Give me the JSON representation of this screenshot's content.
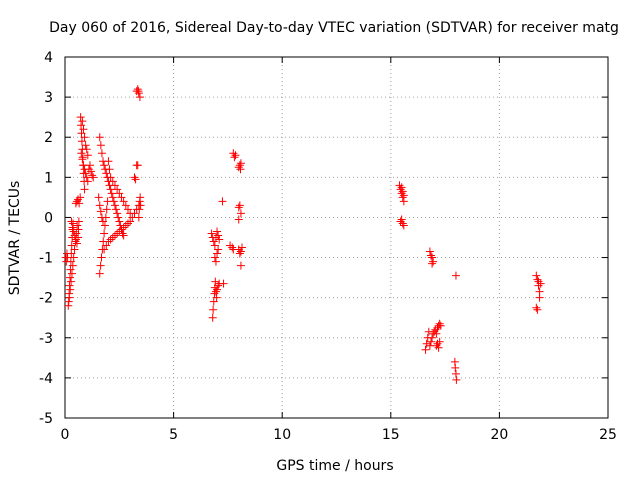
{
  "chart_data": {
    "type": "scatter",
    "title": "Day 060 of 2016, Sidereal Day-to-day VTEC variation (SDTVAR) for receiver matg",
    "xlabel": "GPS time / hours",
    "ylabel": "SDTVAR / TECUs",
    "xlim": [
      0,
      25
    ],
    "ylim": [
      -5,
      4
    ],
    "xticks": [
      0,
      5,
      10,
      15,
      20,
      25
    ],
    "yticks": [
      -5,
      -4,
      -3,
      -2,
      -1,
      0,
      1,
      2,
      3,
      4
    ],
    "grid": true,
    "marker": "+",
    "series": [
      {
        "name": "SDTVAR",
        "color": "#ff0000",
        "points": [
          [
            0.03,
            -1.0
          ],
          [
            0.06,
            -1.1
          ],
          [
            0.09,
            -0.9
          ],
          [
            0.12,
            -1.0
          ],
          [
            0.15,
            -2.2
          ],
          [
            0.17,
            -2.1
          ],
          [
            0.19,
            -1.9
          ],
          [
            0.21,
            -1.7
          ],
          [
            0.23,
            -1.5
          ],
          [
            0.25,
            -1.3
          ],
          [
            0.27,
            -1.1
          ],
          [
            0.29,
            -0.9
          ],
          [
            0.31,
            -0.7
          ],
          [
            0.33,
            -0.5
          ],
          [
            0.35,
            -0.3
          ],
          [
            0.37,
            -0.15
          ],
          [
            0.2,
            -2.0
          ],
          [
            0.24,
            -1.8
          ],
          [
            0.28,
            -1.6
          ],
          [
            0.32,
            -1.4
          ],
          [
            0.36,
            -1.2
          ],
          [
            0.4,
            -1.0
          ],
          [
            0.44,
            -0.8
          ],
          [
            0.48,
            -0.6
          ],
          [
            0.52,
            -0.4
          ],
          [
            0.56,
            -0.2
          ],
          [
            0.3,
            -0.1
          ],
          [
            0.35,
            -0.25
          ],
          [
            0.4,
            -0.35
          ],
          [
            0.45,
            -0.45
          ],
          [
            0.5,
            -0.55
          ],
          [
            0.55,
            -0.65
          ],
          [
            0.6,
            -0.5
          ],
          [
            0.62,
            -0.3
          ],
          [
            0.64,
            -0.1
          ],
          [
            0.5,
            0.35
          ],
          [
            0.55,
            0.4
          ],
          [
            0.6,
            0.45
          ],
          [
            0.65,
            0.35
          ],
          [
            0.7,
            0.5
          ],
          [
            0.72,
            2.5
          ],
          [
            0.74,
            2.3
          ],
          [
            0.76,
            2.1
          ],
          [
            0.78,
            1.9
          ],
          [
            0.8,
            1.7
          ],
          [
            0.82,
            1.5
          ],
          [
            0.84,
            1.3
          ],
          [
            0.86,
            1.1
          ],
          [
            0.88,
            0.9
          ],
          [
            0.9,
            0.7
          ],
          [
            0.75,
            1.6
          ],
          [
            0.8,
            1.45
          ],
          [
            0.85,
            1.3
          ],
          [
            0.9,
            1.2
          ],
          [
            0.95,
            1.1
          ],
          [
            1.0,
            1.0
          ],
          [
            1.05,
            0.9
          ],
          [
            1.1,
            1.2
          ],
          [
            1.15,
            1.3
          ],
          [
            1.2,
            1.15
          ],
          [
            1.25,
            1.05
          ],
          [
            1.3,
            1.0
          ],
          [
            0.8,
            2.4
          ],
          [
            0.85,
            2.2
          ],
          [
            0.9,
            2.0
          ],
          [
            0.95,
            1.8
          ],
          [
            1.0,
            1.7
          ],
          [
            1.05,
            1.55
          ],
          [
            1.6,
            -1.4
          ],
          [
            1.64,
            -1.2
          ],
          [
            1.68,
            -1.0
          ],
          [
            1.72,
            -0.8
          ],
          [
            1.76,
            -0.6
          ],
          [
            1.8,
            -0.4
          ],
          [
            1.84,
            -0.2
          ],
          [
            1.88,
            0.0
          ],
          [
            1.92,
            0.2
          ],
          [
            1.96,
            0.4
          ],
          [
            1.55,
            0.5
          ],
          [
            1.6,
            0.3
          ],
          [
            1.65,
            0.15
          ],
          [
            1.7,
            0.0
          ],
          [
            1.75,
            -0.1
          ],
          [
            1.6,
            2.0
          ],
          [
            1.65,
            1.8
          ],
          [
            1.7,
            1.6
          ],
          [
            1.75,
            1.4
          ],
          [
            1.8,
            1.3
          ],
          [
            1.85,
            1.2
          ],
          [
            1.9,
            1.1
          ],
          [
            1.95,
            1.0
          ],
          [
            2.0,
            0.9
          ],
          [
            2.05,
            0.8
          ],
          [
            2.1,
            0.7
          ],
          [
            2.15,
            0.6
          ],
          [
            2.2,
            0.5
          ],
          [
            2.25,
            0.4
          ],
          [
            2.3,
            0.3
          ],
          [
            2.35,
            0.2
          ],
          [
            2.4,
            0.1
          ],
          [
            2.45,
            0.0
          ],
          [
            2.5,
            -0.1
          ],
          [
            2.55,
            -0.2
          ],
          [
            2.6,
            -0.3
          ],
          [
            2.65,
            -0.4
          ],
          [
            2.7,
            -0.45
          ],
          [
            1.8,
            -0.8
          ],
          [
            1.9,
            -0.7
          ],
          [
            2.0,
            -0.6
          ],
          [
            2.1,
            -0.55
          ],
          [
            2.2,
            -0.5
          ],
          [
            2.3,
            -0.45
          ],
          [
            2.4,
            -0.4
          ],
          [
            2.5,
            -0.35
          ],
          [
            2.6,
            -0.3
          ],
          [
            2.7,
            -0.25
          ],
          [
            2.8,
            -0.2
          ],
          [
            2.9,
            -0.15
          ],
          [
            3.0,
            -0.1
          ],
          [
            3.1,
            0.0
          ],
          [
            3.2,
            0.1
          ],
          [
            3.3,
            0.2
          ],
          [
            3.4,
            0.3
          ],
          [
            2.0,
            1.4
          ],
          [
            2.05,
            1.2
          ],
          [
            2.1,
            1.0
          ],
          [
            2.2,
            0.9
          ],
          [
            2.3,
            0.8
          ],
          [
            2.4,
            0.7
          ],
          [
            2.5,
            0.6
          ],
          [
            2.6,
            0.5
          ],
          [
            2.7,
            0.4
          ],
          [
            2.8,
            0.3
          ],
          [
            2.9,
            0.2
          ],
          [
            3.0,
            0.1
          ],
          [
            3.2,
            1.0
          ],
          [
            3.25,
            0.95
          ],
          [
            3.3,
            1.3
          ],
          [
            3.35,
            1.3
          ],
          [
            3.3,
            3.15
          ],
          [
            3.35,
            3.2
          ],
          [
            3.4,
            3.1
          ],
          [
            3.45,
            3.0
          ],
          [
            3.38,
            3.15
          ],
          [
            3.4,
            0.0
          ],
          [
            3.42,
            0.2
          ],
          [
            3.44,
            0.4
          ],
          [
            3.46,
            0.5
          ],
          [
            3.48,
            0.3
          ],
          [
            6.8,
            -2.5
          ],
          [
            6.82,
            -2.3
          ],
          [
            6.85,
            -2.1
          ],
          [
            6.88,
            -1.9
          ],
          [
            6.9,
            -1.75
          ],
          [
            6.92,
            -1.6
          ],
          [
            6.95,
            -1.85
          ],
          [
            6.98,
            -2.0
          ],
          [
            7.0,
            -1.8
          ],
          [
            7.05,
            -1.7
          ],
          [
            7.1,
            -1.65
          ],
          [
            7.3,
            -1.65
          ],
          [
            6.75,
            -0.4
          ],
          [
            6.8,
            -0.5
          ],
          [
            6.85,
            -0.6
          ],
          [
            6.9,
            -0.7
          ],
          [
            6.95,
            -0.5
          ],
          [
            7.0,
            -0.35
          ],
          [
            7.05,
            -0.45
          ],
          [
            7.1,
            -0.55
          ],
          [
            6.9,
            -1.0
          ],
          [
            6.95,
            -1.1
          ],
          [
            7.0,
            -0.9
          ],
          [
            7.05,
            -0.8
          ],
          [
            7.25,
            0.4
          ],
          [
            7.6,
            -0.7
          ],
          [
            7.7,
            -0.75
          ],
          [
            7.75,
            -0.8
          ],
          [
            7.75,
            1.6
          ],
          [
            7.8,
            1.5
          ],
          [
            7.85,
            1.55
          ],
          [
            8.0,
            1.25
          ],
          [
            8.05,
            1.3
          ],
          [
            8.1,
            1.35
          ],
          [
            8.08,
            1.2
          ],
          [
            8.0,
            0.25
          ],
          [
            8.05,
            0.3
          ],
          [
            8.1,
            0.1
          ],
          [
            8.0,
            -0.05
          ],
          [
            8.0,
            -0.8
          ],
          [
            8.05,
            -0.9
          ],
          [
            8.1,
            -0.85
          ],
          [
            8.15,
            -0.75
          ],
          [
            8.1,
            -1.2
          ],
          [
            15.4,
            0.8
          ],
          [
            15.45,
            0.7
          ],
          [
            15.5,
            0.6
          ],
          [
            15.55,
            0.5
          ],
          [
            15.6,
            0.4
          ],
          [
            15.5,
            0.75
          ],
          [
            15.55,
            0.65
          ],
          [
            15.6,
            0.55
          ],
          [
            15.45,
            -0.1
          ],
          [
            15.5,
            -0.05
          ],
          [
            15.55,
            -0.15
          ],
          [
            15.6,
            -0.2
          ],
          [
            16.8,
            -0.85
          ],
          [
            16.85,
            -0.95
          ],
          [
            16.9,
            -1.0
          ],
          [
            16.95,
            -1.1
          ],
          [
            16.9,
            -1.15
          ],
          [
            16.6,
            -3.3
          ],
          [
            16.65,
            -3.15
          ],
          [
            16.7,
            -3.0
          ],
          [
            16.75,
            -2.85
          ],
          [
            16.8,
            -3.2
          ],
          [
            16.85,
            -3.1
          ],
          [
            16.9,
            -3.0
          ],
          [
            16.95,
            -2.9
          ],
          [
            17.0,
            -2.85
          ],
          [
            17.05,
            -2.8
          ],
          [
            17.1,
            -2.9
          ],
          [
            17.15,
            -2.75
          ],
          [
            17.2,
            -2.7
          ],
          [
            17.25,
            -2.65
          ],
          [
            17.3,
            -2.7
          ],
          [
            17.1,
            -3.2
          ],
          [
            17.15,
            -3.15
          ],
          [
            17.2,
            -3.25
          ],
          [
            17.25,
            -3.1
          ],
          [
            17.95,
            -3.6
          ],
          [
            17.97,
            -3.75
          ],
          [
            18.0,
            -3.9
          ],
          [
            18.02,
            -4.05
          ],
          [
            18.0,
            -1.45
          ],
          [
            21.7,
            -1.45
          ],
          [
            21.75,
            -1.55
          ],
          [
            21.8,
            -1.7
          ],
          [
            21.85,
            -1.85
          ],
          [
            21.7,
            -2.25
          ],
          [
            21.75,
            -2.3
          ],
          [
            21.8,
            -1.6
          ],
          [
            21.85,
            -2.0
          ],
          [
            21.9,
            -1.65
          ]
        ]
      }
    ]
  }
}
